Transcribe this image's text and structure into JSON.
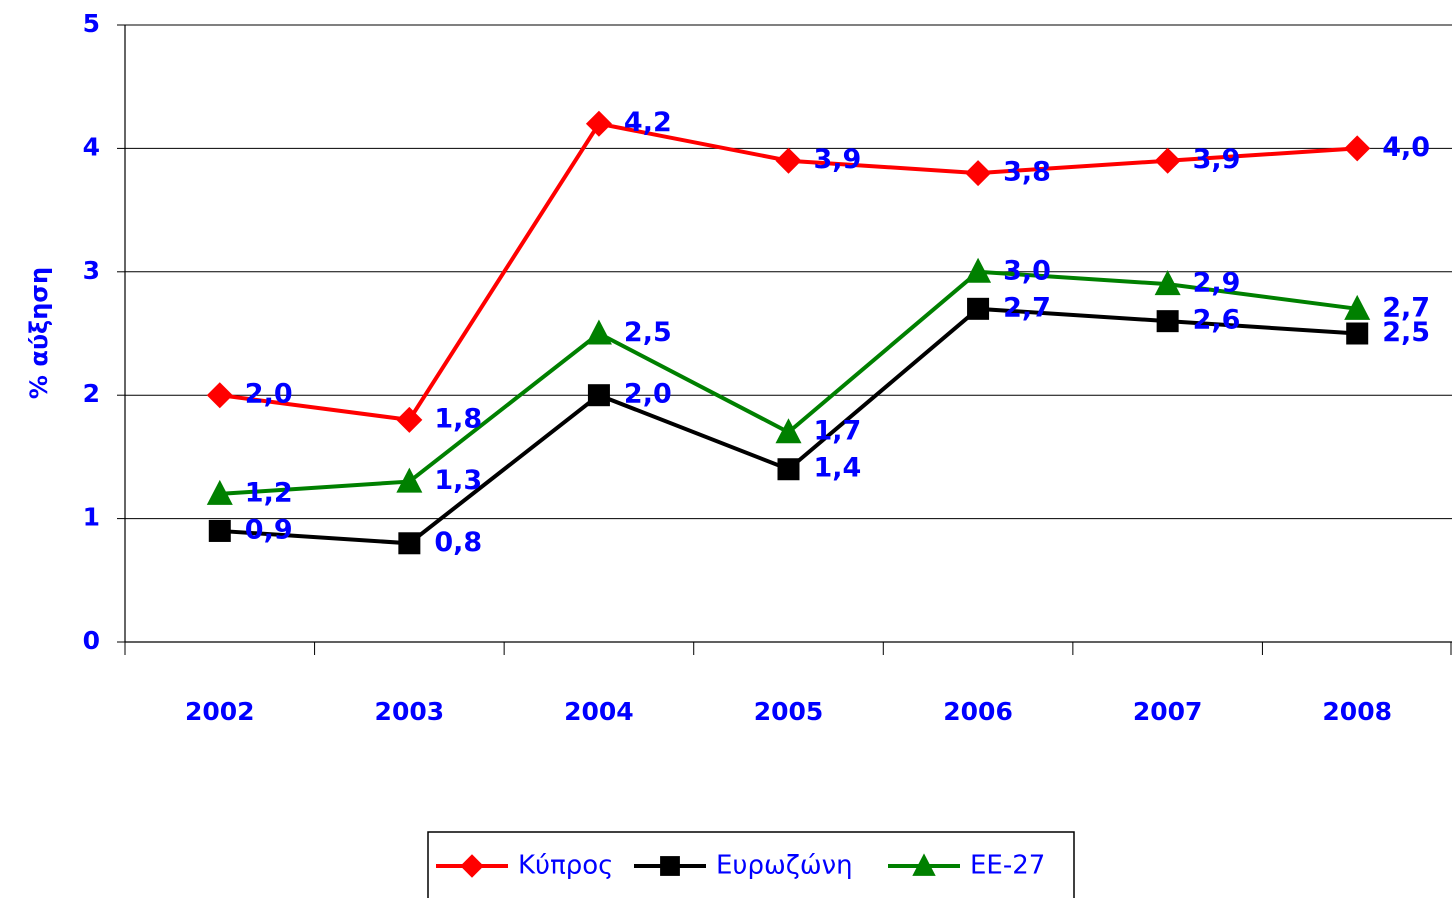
{
  "chart_data": {
    "type": "line",
    "y_label": "% αύξηση",
    "categories": [
      "2002",
      "2003",
      "2004",
      "2005",
      "2006",
      "2007",
      "2008"
    ],
    "series": [
      {
        "name": "Κύπρος",
        "color": "#ff0000",
        "marker": "diamond",
        "values": [
          2.0,
          1.8,
          4.2,
          3.9,
          3.8,
          3.9,
          4.0
        ],
        "value_labels": [
          "2,0",
          "1,8",
          "4,2",
          "3,9",
          "3,8",
          "3,9",
          "4,0"
        ]
      },
      {
        "name": "Ευρωζώνη",
        "color": "#000000",
        "marker": "square",
        "values": [
          0.9,
          0.8,
          2.0,
          1.4,
          2.7,
          2.6,
          2.5
        ],
        "value_labels": [
          "0,9",
          "0,8",
          "2,0",
          "1,4",
          "2,7",
          "2,6",
          "2,5"
        ]
      },
      {
        "name": "ΕΕ-27",
        "color": "#008000",
        "marker": "triangle",
        "values": [
          1.2,
          1.3,
          2.5,
          1.7,
          3.0,
          2.9,
          2.7
        ],
        "value_labels": [
          "1,2",
          "1,3",
          "2,5",
          "1,7",
          "3,0",
          "2,9",
          "2,7"
        ]
      }
    ],
    "ylim": [
      0,
      5
    ],
    "yticks": [
      0,
      1,
      2,
      3,
      4,
      5
    ],
    "grid": true,
    "legend": "bottom"
  }
}
